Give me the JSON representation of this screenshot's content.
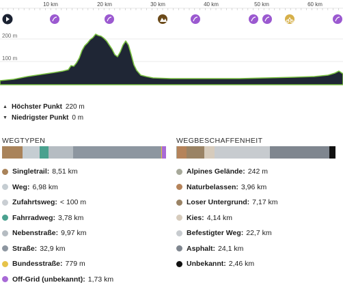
{
  "elevation": {
    "km_ticks": [
      "10 km",
      "20 km",
      "30 km",
      "40 km",
      "50 km",
      "60 km"
    ],
    "y_ticks": [
      "200 m",
      "100 m"
    ],
    "play_icon": "play-icon",
    "markers": [
      {
        "icon": "bike-route-icon",
        "color": "#9b59d0"
      },
      {
        "icon": "bike-route-icon",
        "color": "#9b59d0"
      },
      {
        "icon": "climb-icon",
        "color": "#6b4a1a"
      },
      {
        "icon": "bike-route-icon",
        "color": "#9b59d0"
      },
      {
        "icon": "bike-route-icon",
        "color": "#9b59d0"
      },
      {
        "icon": "bike-route-icon",
        "color": "#9b59d0"
      },
      {
        "icon": "cyclist-icon",
        "color": "#d6b04a"
      },
      {
        "icon": "bike-route-icon",
        "color": "#9b59d0"
      }
    ],
    "fill_color": "#1f2635",
    "line_color": "#7ac142"
  },
  "stats": {
    "highest_label": "Höchster Punkt",
    "highest_value": "220 m",
    "lowest_label": "Niedrigster Punkt",
    "lowest_value": "0 m"
  },
  "waytypes": {
    "title": "WEGTYPEN",
    "bar": [
      {
        "color": "#a9835a",
        "share": 0.128
      },
      {
        "color": "#c5cdd2",
        "share": 0.105
      },
      {
        "color": "#4aa18f",
        "share": 0.057
      },
      {
        "color": "#b5bcc2",
        "share": 0.15
      },
      {
        "color": "#8d96a0",
        "share": 0.55
      },
      {
        "color": "#e6c34a",
        "share": 0.004
      },
      {
        "color": "#a86ad6",
        "share": 0.026
      }
    ],
    "items": [
      {
        "label": "Singletrail:",
        "value": "8,51 km",
        "color": "#a9835a"
      },
      {
        "label": "Weg:",
        "value": "6,98 km",
        "color": "#c5cdd2"
      },
      {
        "label": "Zufahrtsweg:",
        "value": "< 100 m",
        "color": "#c9ced3"
      },
      {
        "label": "Fahrradweg:",
        "value": "3,78 km",
        "color": "#4aa18f"
      },
      {
        "label": "Nebenstraße:",
        "value": "9,97 km",
        "color": "#b5bcc2"
      },
      {
        "label": "Straße:",
        "value": "32,9 km",
        "color": "#8d96a0"
      },
      {
        "label": "Bundesstraße:",
        "value": "779 m",
        "color": "#e6c34a"
      },
      {
        "label": "Off-Grid (unbekannt):",
        "value": "1,73 km",
        "color": "#a86ad6"
      }
    ]
  },
  "surfaces": {
    "title": "WEGBESCHAFFENHEIT",
    "bar": [
      {
        "color": "#a7a99a",
        "share": 0.004
      },
      {
        "color": "#b5835a",
        "share": 0.058
      },
      {
        "color": "#9a8365",
        "share": 0.108
      },
      {
        "color": "#d6cbbc",
        "share": 0.062
      },
      {
        "color": "#c7cbcf",
        "share": 0.34
      },
      {
        "color": "#7f868f",
        "share": 0.36
      },
      {
        "color": "#111111",
        "share": 0.037
      }
    ],
    "items": [
      {
        "label": "Alpines Gelände:",
        "value": "242 m",
        "color": "#a7a99a"
      },
      {
        "label": "Naturbelassen:",
        "value": "3,96 km",
        "color": "#b5835a"
      },
      {
        "label": "Loser Untergrund:",
        "value": "7,17 km",
        "color": "#9a8365"
      },
      {
        "label": "Kies:",
        "value": "4,14 km",
        "color": "#d6cbbc"
      },
      {
        "label": "Befestigter Weg:",
        "value": "22,7 km",
        "color": "#c7cbcf"
      },
      {
        "label": "Asphalt:",
        "value": "24,1 km",
        "color": "#7f868f"
      },
      {
        "label": "Unbekannt:",
        "value": "2,46 km",
        "color": "#111111"
      }
    ]
  }
}
